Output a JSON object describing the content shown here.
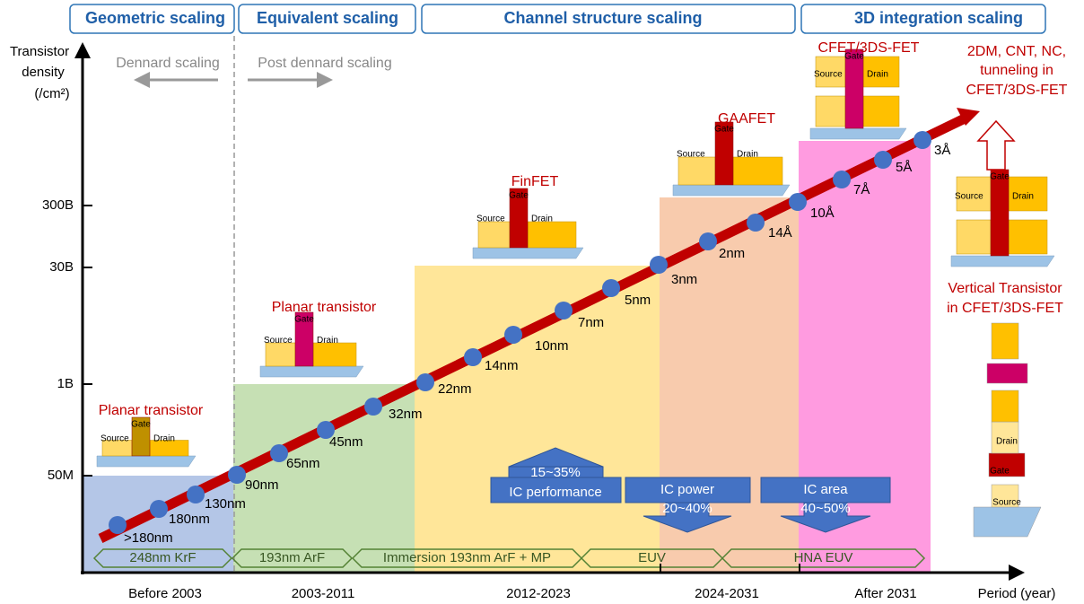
{
  "header": {
    "phases": [
      "Geometric scaling",
      "Equivalent scaling",
      "Channel structure scaling",
      "3D integration scaling"
    ]
  },
  "y_axis": {
    "label": [
      "Transistor",
      "density",
      "(/cm²)"
    ],
    "ticks": [
      "300B",
      "30B",
      "1B",
      "50M"
    ]
  },
  "x_axis": {
    "label": "Period (year)",
    "periods": [
      "Before 2003",
      "2003-2011",
      "2012-2023",
      "2024-2031",
      "After 2031"
    ]
  },
  "scaling_eras": [
    "Dennard scaling",
    "Post dennard scaling"
  ],
  "nodes": [
    ">180nm",
    "180nm",
    "130nm",
    "90nm",
    "65nm",
    "45nm",
    "32nm",
    "22nm",
    "14nm",
    "10nm",
    "7nm",
    "5nm",
    "3nm",
    "2nm",
    "14Å",
    "10Å",
    "7Å",
    "5Å",
    "3Å"
  ],
  "devices": [
    {
      "name": "Planar transistor",
      "source": "Source",
      "gate": "Gate",
      "drain": "Drain"
    },
    {
      "name": "Planar transistor",
      "source": "Source",
      "gate": "Gate",
      "drain": "Drain"
    },
    {
      "name": "FinFET",
      "source": "Source",
      "gate": "Gate",
      "drain": "Drain"
    },
    {
      "name": "GAAFET",
      "source": "Source",
      "gate": "Gate",
      "drain": "Drain"
    },
    {
      "name": "CFET/3DS-FET",
      "source": "Source",
      "gate": "Gate",
      "drain": "Drain"
    },
    {
      "source": "Source",
      "gate": "Gate",
      "drain": "Drain"
    }
  ],
  "future": {
    "lines": [
      "2DM, CNT, NC,",
      "tunneling in",
      "CFET/3DS-FET"
    ]
  },
  "vertical": {
    "name": [
      "Vertical Transistor",
      "in CFET/3DS-FET"
    ],
    "drain": "Drain",
    "gate": "Gate",
    "source": "Source"
  },
  "lithography": [
    "248nm KrF",
    "193nm ArF",
    "Immersion 193nm ArF + MP",
    "EUV",
    "HNA EUV"
  ],
  "benefits": [
    {
      "lines": [
        "15~35%",
        "IC performance"
      ]
    },
    {
      "lines": [
        "IC power",
        "20~40%"
      ]
    },
    {
      "lines": [
        "IC area",
        "40~50%"
      ]
    }
  ]
}
